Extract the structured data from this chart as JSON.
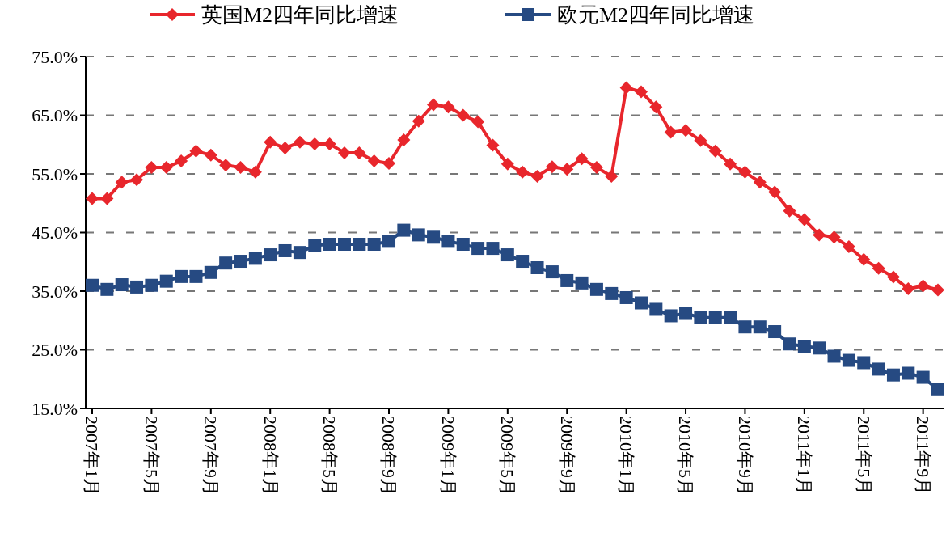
{
  "chart_data": {
    "type": "line",
    "categories": [
      "2007年1月",
      null,
      null,
      null,
      "2007年5月",
      null,
      null,
      null,
      "2007年9月",
      null,
      null,
      null,
      "2008年1月",
      null,
      null,
      null,
      "2008年5月",
      null,
      null,
      null,
      "2008年9月",
      null,
      null,
      null,
      "2009年1月",
      null,
      null,
      null,
      "2009年5月",
      null,
      null,
      null,
      "2009年9月",
      null,
      null,
      null,
      "2010年1月",
      null,
      null,
      null,
      "2010年5月",
      null,
      null,
      null,
      "2010年9月",
      null,
      null,
      null,
      "2011年1月",
      null,
      null,
      null,
      "2011年5月",
      null,
      null,
      null,
      "2011年9月",
      null
    ],
    "series": [
      {
        "name": "英国M2四年同比增速",
        "color": "#e8262c",
        "marker": "diamond",
        "values": [
          50.8,
          50.8,
          53.6,
          54.0,
          56.1,
          56.1,
          57.2,
          58.9,
          58.2,
          56.5,
          56.1,
          55.3,
          60.4,
          59.4,
          60.4,
          60.1,
          60.1,
          58.6,
          58.6,
          57.2,
          56.8,
          60.8,
          64.0,
          66.8,
          66.4,
          65.0,
          63.9,
          59.9,
          56.7,
          55.3,
          54.6,
          56.2,
          55.8,
          57.6,
          56.1,
          54.6,
          69.7,
          69.0,
          66.4,
          62.1,
          62.4,
          60.7,
          58.9,
          56.7,
          55.3,
          53.6,
          51.9,
          48.7,
          47.2,
          44.6,
          44.2,
          42.6,
          40.4,
          38.9,
          37.4,
          35.4,
          35.9,
          35.2
        ]
      },
      {
        "name": "欧元M2四年同比增速",
        "color": "#264a82",
        "marker": "square",
        "values": [
          36.0,
          35.3,
          36.1,
          35.7,
          36.0,
          36.7,
          37.5,
          37.5,
          38.2,
          39.8,
          40.1,
          40.6,
          41.2,
          41.9,
          41.6,
          42.8,
          43.0,
          43.0,
          43.0,
          43.0,
          43.5,
          45.4,
          44.6,
          44.2,
          43.5,
          43.0,
          42.3,
          42.3,
          41.2,
          40.1,
          39.0,
          38.3,
          36.8,
          36.4,
          35.3,
          34.6,
          33.9,
          33.0,
          31.9,
          30.8,
          31.2,
          30.5,
          30.5,
          30.5,
          28.9,
          28.9,
          28.1,
          26.0,
          25.6,
          25.3,
          23.9,
          23.2,
          22.8,
          21.7,
          20.7,
          21.0,
          20.3,
          18.2
        ]
      }
    ],
    "ylim": [
      15,
      75
    ],
    "yticks": [
      {
        "value": 15,
        "label": "15.0%"
      },
      {
        "value": 25,
        "label": "25.0%"
      },
      {
        "value": 35,
        "label": "35.0%"
      },
      {
        "value": 45,
        "label": "45.0%"
      },
      {
        "value": 55,
        "label": "55.0%"
      },
      {
        "value": 65,
        "label": "65.0%"
      },
      {
        "value": 75,
        "label": "75.0%"
      }
    ],
    "grid": "y",
    "legend": "top",
    "line_style": "solid"
  }
}
